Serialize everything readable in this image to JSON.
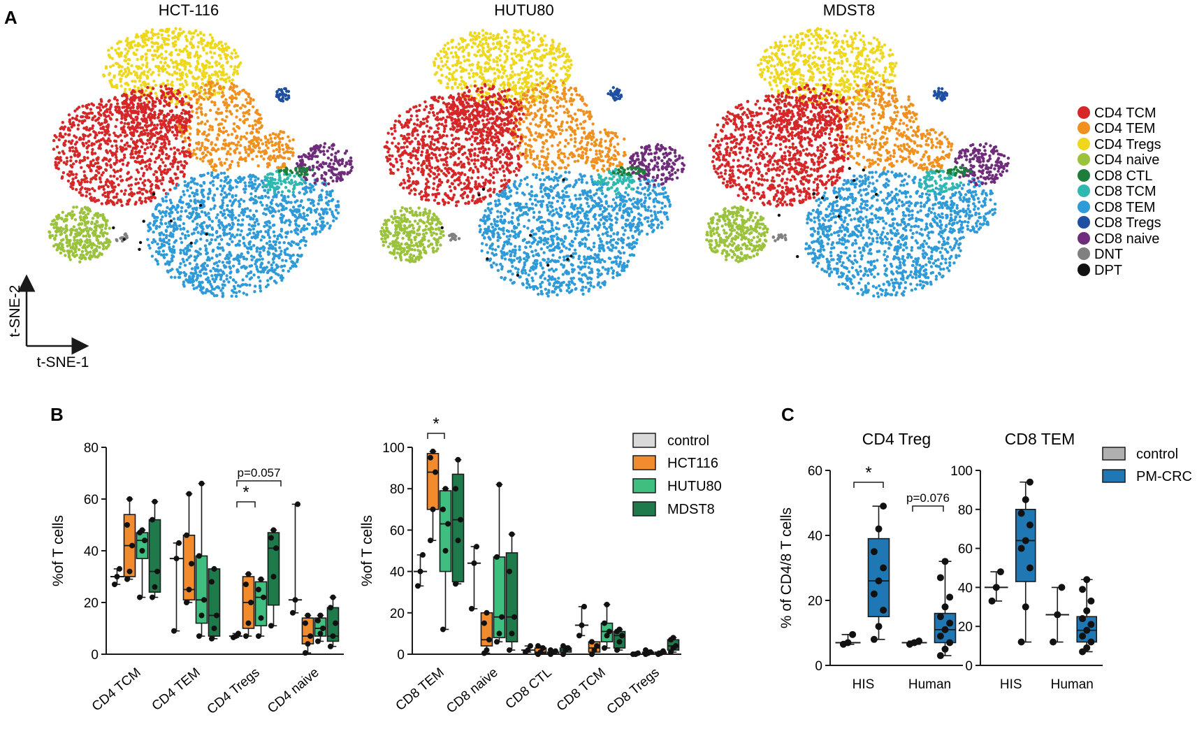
{
  "figure": {
    "panels": [
      "A",
      "B",
      "C"
    ]
  },
  "panel_a": {
    "plots": [
      "HCT-116",
      "HUTU80",
      "MDST8"
    ],
    "axis_x": "t-SNE-1",
    "axis_y": "t-SNE-2",
    "legend": [
      {
        "label": "CD4 TCM",
        "color": "#d62728"
      },
      {
        "label": "CD4 TEM",
        "color": "#f0901f"
      },
      {
        "label": "CD4 Tregs",
        "color": "#eed71c"
      },
      {
        "label": "CD4 naive",
        "color": "#9ac23c"
      },
      {
        "label": "CD8 CTL",
        "color": "#1e7d3a"
      },
      {
        "label": "CD8 TCM",
        "color": "#2fb8b0"
      },
      {
        "label": "CD8 TEM",
        "color": "#2f9ad8"
      },
      {
        "label": "CD8 Tregs",
        "color": "#1f4fa0"
      },
      {
        "label": "CD8 naive",
        "color": "#6e2c7a"
      },
      {
        "label": "DNT",
        "color": "#808080"
      },
      {
        "label": "DPT",
        "color": "#111111"
      }
    ]
  },
  "panel_b": {
    "legend": [
      {
        "label": "control",
        "color": "#d9d9d9"
      },
      {
        "label": "HCT116",
        "color": "#f28a2e"
      },
      {
        "label": "HUTU80",
        "color": "#3fbf7f"
      },
      {
        "label": "MDST8",
        "color": "#1e7a4a"
      }
    ]
  },
  "panel_c": {
    "legend": [
      {
        "label": "control",
        "color": "#b0b0b0"
      },
      {
        "label": "PM-CRC",
        "color": "#1f77b4"
      }
    ]
  },
  "chart_data": [
    {
      "type": "box",
      "ylabel": "%of T cells",
      "ylim": [
        0,
        80
      ],
      "yticks": [
        0,
        20,
        40,
        60,
        80
      ],
      "categories": [
        "CD4 TCM",
        "CD4 TEM",
        "CD4 Tregs",
        "CD4 naive"
      ],
      "series_names": [
        "control",
        "HCT116",
        "HUTU80",
        "MDST8"
      ],
      "boxes": [
        [
          {
            "min": 27,
            "q1": 29,
            "med": 30,
            "q3": 31,
            "max": 33,
            "points": [
              27,
              30,
              33
            ]
          },
          {
            "min": 29,
            "q1": 30,
            "med": 42,
            "q3": 54,
            "max": 60,
            "points": [
              29,
              32,
              42,
              50,
              60
            ]
          },
          {
            "min": 22,
            "q1": 37,
            "med": 44,
            "q3": 47,
            "max": 48,
            "points": [
              22,
              40,
              44,
              47,
              48
            ]
          },
          {
            "min": 22,
            "q1": 24,
            "med": 32,
            "q3": 52,
            "max": 59,
            "points": [
              22,
              26,
              32,
              52,
              59
            ]
          }
        ],
        [
          {
            "min": 9,
            "q1": 37,
            "med": 37,
            "q3": 37,
            "max": 43,
            "points": [
              9,
              37,
              43
            ]
          },
          {
            "min": 20,
            "q1": 21,
            "med": 25,
            "q3": 46,
            "max": 62,
            "points": [
              20,
              25,
              35,
              46,
              62
            ]
          },
          {
            "min": 7,
            "q1": 12,
            "med": 21,
            "q3": 38,
            "max": 66,
            "points": [
              7,
              15,
              21,
              38,
              66
            ]
          },
          {
            "min": 6,
            "q1": 7,
            "med": 15,
            "q3": 33,
            "max": 33,
            "points": [
              6,
              10,
              15,
              28,
              33
            ]
          }
        ],
        [
          {
            "min": 6.5,
            "q1": 7,
            "med": 7,
            "q3": 7.5,
            "max": 8,
            "points": [
              6.5,
              7,
              8
            ]
          },
          {
            "min": 7,
            "q1": 10,
            "med": 20,
            "q3": 30,
            "max": 31,
            "points": [
              7,
              12,
              20,
              27,
              31
            ]
          },
          {
            "min": 7,
            "q1": 11,
            "med": 22,
            "q3": 28,
            "max": 29,
            "points": [
              7,
              14,
              22,
              25,
              29
            ]
          },
          {
            "min": 11,
            "q1": 19,
            "med": 41,
            "q3": 47,
            "max": 48,
            "points": [
              11,
              30,
              41,
              45,
              48
            ]
          }
        ],
        [
          {
            "min": 16,
            "q1": 20,
            "med": 21,
            "q3": 21,
            "max": 58,
            "points": [
              16,
              21,
              58
            ]
          },
          {
            "min": 0.5,
            "q1": 4,
            "med": 7,
            "q3": 14,
            "max": 15,
            "points": [
              0.5,
              4,
              7,
              12,
              15
            ]
          },
          {
            "min": 5,
            "q1": 7,
            "med": 10,
            "q3": 14,
            "max": 15,
            "points": [
              5,
              8,
              10,
              13,
              15
            ]
          },
          {
            "min": 3,
            "q1": 5,
            "med": 7,
            "q3": 18,
            "max": 22,
            "points": [
              3,
              7,
              12,
              18,
              22
            ]
          }
        ]
      ],
      "annotations": [
        {
          "label": "*",
          "category": "CD4 Tregs"
        },
        {
          "label": "p=0.057",
          "category": "CD4 Tregs"
        }
      ]
    },
    {
      "type": "box",
      "ylabel": "%of T cells",
      "ylim": [
        0,
        100
      ],
      "yticks": [
        0,
        20,
        40,
        60,
        80,
        100
      ],
      "categories": [
        "CD8 TEM",
        "CD8 naive",
        "CD8 CTL",
        "CD8 TCM",
        "CD8 Tregs"
      ],
      "series_names": [
        "control",
        "HCT116",
        "HUTU80",
        "MDST8"
      ],
      "boxes": [
        [
          {
            "min": 33,
            "q1": 38,
            "med": 40,
            "q3": 41,
            "max": 48,
            "points": [
              33,
              40,
              48
            ]
          },
          {
            "min": 55,
            "q1": 70,
            "med": 88,
            "q3": 97,
            "max": 98,
            "points": [
              55,
              70,
              88,
              95,
              98
            ]
          },
          {
            "min": 12,
            "q1": 40,
            "med": 63,
            "q3": 79,
            "max": 80,
            "points": [
              12,
              50,
              63,
              70,
              80
            ]
          },
          {
            "min": 34,
            "q1": 35,
            "med": 65,
            "q3": 87,
            "max": 94,
            "points": [
              34,
              55,
              65,
              80,
              94
            ]
          }
        ],
        [
          {
            "min": 22,
            "q1": 42,
            "med": 44,
            "q3": 44,
            "max": 52,
            "points": [
              22,
              44,
              52
            ]
          },
          {
            "min": 0.5,
            "q1": 4,
            "med": 7,
            "q3": 20,
            "max": 20,
            "points": [
              0.5,
              2,
              7,
              15,
              20
            ]
          },
          {
            "min": 6,
            "q1": 8,
            "med": 18,
            "q3": 47,
            "max": 82,
            "points": [
              6,
              10,
              18,
              47,
              82
            ]
          },
          {
            "min": 2,
            "q1": 6,
            "med": 18,
            "q3": 49,
            "max": 58,
            "points": [
              2,
              10,
              18,
              40,
              58
            ]
          }
        ],
        [
          {
            "min": 1,
            "q1": 2,
            "med": 2,
            "q3": 2,
            "max": 4,
            "points": [
              1,
              2,
              4
            ]
          },
          {
            "min": 0,
            "q1": 0.5,
            "med": 1,
            "q3": 3,
            "max": 4,
            "points": [
              0,
              1,
              3,
              4
            ]
          },
          {
            "min": 0,
            "q1": 0,
            "med": 1,
            "q3": 1,
            "max": 2,
            "points": [
              0,
              1,
              1.5,
              2
            ]
          },
          {
            "min": 0,
            "q1": 1,
            "med": 2,
            "q3": 3,
            "max": 4,
            "points": [
              0,
              2,
              3,
              4
            ]
          }
        ],
        [
          {
            "min": 9,
            "q1": 13,
            "med": 14,
            "q3": 14,
            "max": 23,
            "points": [
              9,
              14,
              23
            ]
          },
          {
            "min": 0,
            "q1": 1,
            "med": 3,
            "q3": 6,
            "max": 6,
            "points": [
              0,
              2,
              4,
              6
            ]
          },
          {
            "min": 3,
            "q1": 6,
            "med": 11,
            "q3": 15,
            "max": 24,
            "points": [
              3,
              9,
              11,
              15,
              24
            ]
          },
          {
            "min": 2,
            "q1": 3,
            "med": 9,
            "q3": 11,
            "max": 12,
            "points": [
              2,
              6,
              9,
              11,
              12
            ]
          }
        ],
        [
          {
            "min": 0,
            "q1": 0,
            "med": 0,
            "q3": 0,
            "max": 0.5,
            "points": [
              0,
              0,
              0.5
            ]
          },
          {
            "min": 0,
            "q1": 0,
            "med": 0.5,
            "q3": 1,
            "max": 2,
            "points": [
              0,
              0.5,
              1,
              2
            ]
          },
          {
            "min": 0,
            "q1": 0,
            "med": 0.5,
            "q3": 1,
            "max": 1.5,
            "points": [
              0,
              0.5,
              1.5
            ]
          },
          {
            "min": 1,
            "q1": 2,
            "med": 4,
            "q3": 7,
            "max": 8,
            "points": [
              1,
              3,
              4,
              7,
              8
            ]
          }
        ]
      ],
      "annotations": [
        {
          "label": "*",
          "category": "CD8 TEM"
        }
      ]
    },
    {
      "type": "box",
      "title": "CD4 Treg",
      "ylabel": "% of CD4/8 T cells",
      "ylim": [
        0,
        60
      ],
      "yticks": [
        0,
        20,
        40,
        60
      ],
      "categories": [
        "HIS",
        "Human"
      ],
      "series_names": [
        "control",
        "PM-CRC"
      ],
      "boxes": [
        [
          {
            "min": 6.5,
            "q1": 7,
            "med": 7,
            "q3": 7.5,
            "max": 9.5,
            "points": [
              6.5,
              7,
              9.5
            ]
          },
          {
            "min": 8,
            "q1": 15,
            "med": 26,
            "q3": 39,
            "max": 49,
            "points": [
              8,
              12,
              17,
              22,
              26,
              30,
              35,
              42,
              49
            ]
          }
        ],
        [
          {
            "min": 6.5,
            "q1": 7,
            "med": 7,
            "q3": 7,
            "max": 7.5,
            "points": [
              6.5,
              7,
              7.5
            ]
          },
          {
            "min": 3,
            "q1": 7,
            "med": 11,
            "q3": 16,
            "max": 32,
            "points": [
              3,
              5,
              7,
              9,
              11,
              13,
              15,
              18,
              21,
              27,
              32
            ]
          }
        ]
      ],
      "annotations": [
        {
          "label": "*",
          "category": "HIS"
        },
        {
          "label": "p=0.076",
          "category": "Human"
        }
      ]
    },
    {
      "type": "box",
      "title": "CD8 TEM",
      "ylabel": "",
      "ylim": [
        0,
        100
      ],
      "yticks": [
        0,
        20,
        40,
        60,
        80,
        100
      ],
      "categories": [
        "HIS",
        "Human"
      ],
      "series_names": [
        "control",
        "PM-CRC"
      ],
      "boxes": [
        [
          {
            "min": 33,
            "q1": 38,
            "med": 40,
            "q3": 41,
            "max": 48,
            "points": [
              33,
              40,
              48
            ]
          },
          {
            "min": 12,
            "q1": 43,
            "med": 64,
            "q3": 80,
            "max": 94,
            "points": [
              12,
              30,
              50,
              60,
              64,
              72,
              78,
              85,
              94
            ]
          }
        ],
        [
          {
            "min": 12,
            "q1": 25,
            "med": 26,
            "q3": 26,
            "max": 40,
            "points": [
              12,
              26,
              40
            ]
          },
          {
            "min": 7,
            "q1": 12,
            "med": 18,
            "q3": 25,
            "max": 44,
            "points": [
              7,
              9,
              12,
              15,
              18,
              21,
              24,
              28,
              33,
              39,
              44
            ]
          }
        ]
      ],
      "annotations": []
    }
  ]
}
